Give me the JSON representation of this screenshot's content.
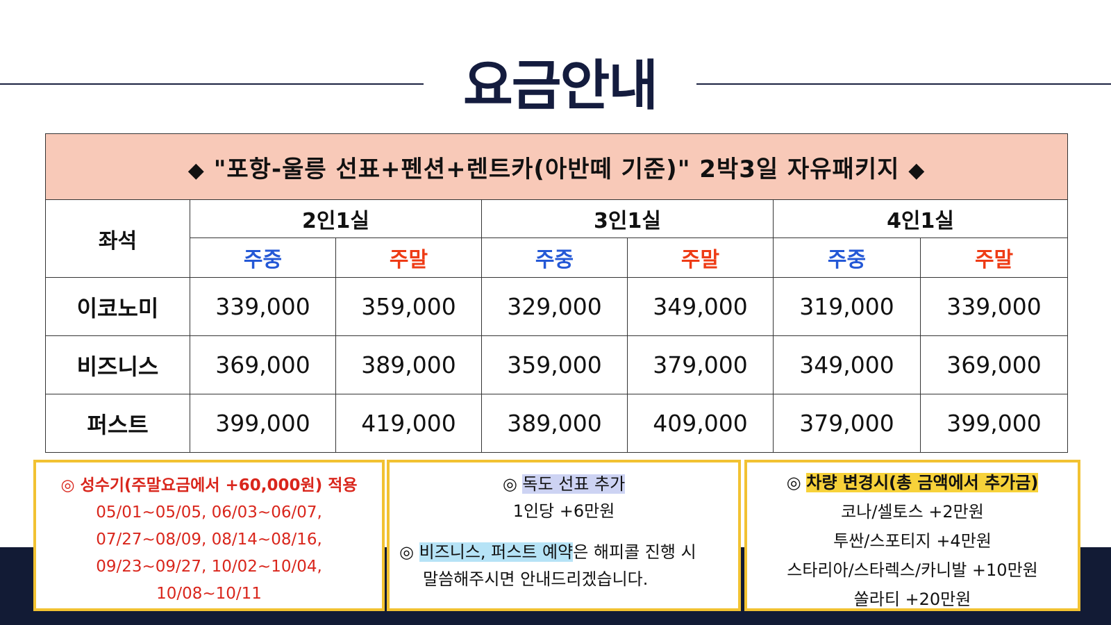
{
  "header": {
    "title": "요금안내"
  },
  "table": {
    "banner": {
      "left_symbol": "◆",
      "text": "\"포항-울릉 선표+펜션+렌트카(아반떼 기준)\" 2박3일 자유패키지",
      "right_symbol": "◆"
    },
    "seat_header": "좌석",
    "room_groups": [
      {
        "label": "2인1실",
        "weekday": "주중",
        "weekend": "주말"
      },
      {
        "label": "3인1실",
        "weekday": "주중",
        "weekend": "주말"
      },
      {
        "label": "4인1실",
        "weekday": "주중",
        "weekend": "주말"
      }
    ],
    "rows": [
      {
        "seat": "이코노미",
        "prices": [
          "339,000",
          "359,000",
          "329,000",
          "349,000",
          "319,000",
          "339,000"
        ]
      },
      {
        "seat": "비즈니스",
        "prices": [
          "369,000",
          "389,000",
          "359,000",
          "379,000",
          "349,000",
          "369,000"
        ]
      },
      {
        "seat": "퍼스트",
        "prices": [
          "399,000",
          "419,000",
          "389,000",
          "409,000",
          "379,000",
          "399,000"
        ]
      }
    ]
  },
  "notes": {
    "peak": {
      "title": "◎ 성수기(주말요금에서 +60,000원) 적용",
      "lines": [
        "05/01~05/05, 06/03~06/07,",
        "07/27~08/09, 08/14~08/16,",
        "09/23~09/27, 10/02~10/04,",
        "10/08~10/11"
      ]
    },
    "extras": {
      "dokdo_mark": "◎",
      "dokdo_title": "독도 선표 추가",
      "dokdo_price": "1인당 +6만원",
      "reserve_mark": "◎",
      "reserve_highlight": "비즈니스, 퍼스트 예약",
      "reserve_rest": "은 해피콜 진행 시",
      "reserve_line2": "말씀해주시면 안내드리겠습니다."
    },
    "car": {
      "mark": "◎",
      "title": "차량 변경시(총 금액에서 추가금)",
      "lines": [
        "코나/셀토스 +2만원",
        "투싼/스포티지 +4만원",
        "스타리아/스타렉스/카니발 +10만원",
        "쏠라티 +20만원"
      ]
    }
  },
  "colors": {
    "title_navy": "#141c3e",
    "banner_bg": "#f8c9b8",
    "weekday_blue": "#2458d6",
    "weekend_red": "#ee3b15",
    "note_border": "#f2c232",
    "peak_text_red": "#d9261c",
    "bottom_band": "#121b35"
  }
}
